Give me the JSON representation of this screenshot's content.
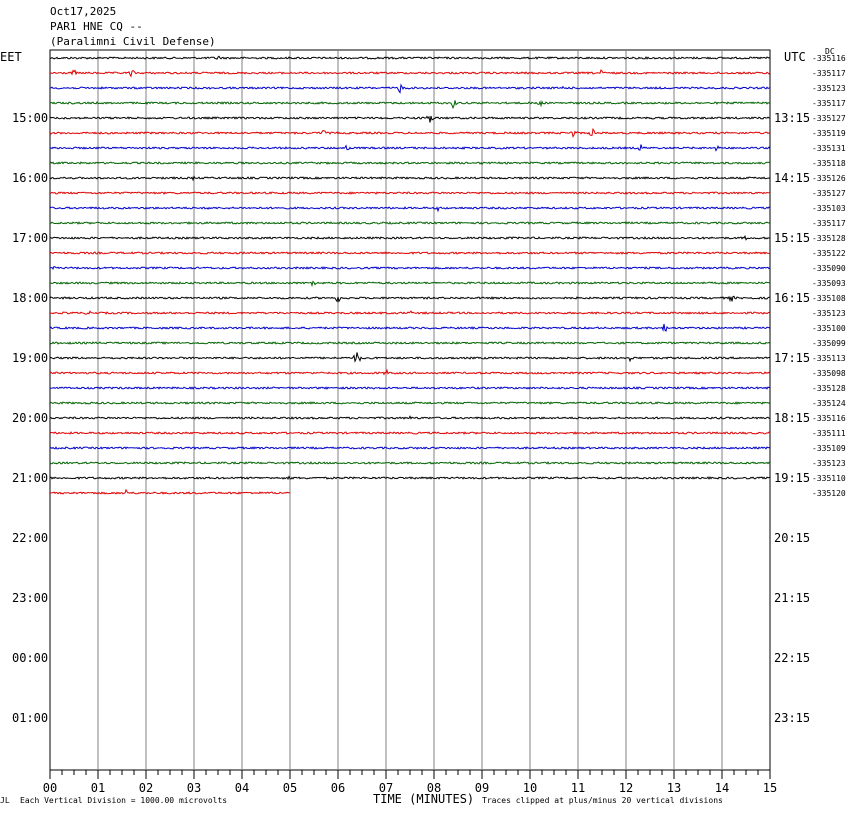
{
  "header": {
    "date": "Oct17,2025",
    "station": "PAR1 HNE CQ --",
    "location": "(Paralimni Civil Defense)"
  },
  "labels": {
    "left_tz": "EET",
    "right_tz": "UTC",
    "dc": "DC",
    "corner": "JL",
    "footer_left": "Each Vertical Division = 1000.00 microvolts",
    "footer_right": "Traces clipped at plus/minus 20 vertical divisions"
  },
  "colors": {
    "cycle": [
      "#000000",
      "#e00000",
      "#0000c8",
      "#006400"
    ],
    "grid": "#808080"
  },
  "chart_data": {
    "type": "line",
    "xlabel": "TIME (MINUTES)",
    "xlim": [
      0,
      15
    ],
    "x_ticks": [
      "00",
      "01",
      "02",
      "03",
      "04",
      "05",
      "06",
      "07",
      "08",
      "09",
      "10",
      "11",
      "12",
      "13",
      "14",
      "15"
    ],
    "left_hour_labels": [
      "15:00",
      "16:00",
      "17:00",
      "18:00",
      "19:00",
      "20:00",
      "21:00",
      "22:00",
      "23:00",
      "00:00",
      "01:00"
    ],
    "right_hour_labels": [
      "13:15",
      "14:15",
      "15:15",
      "16:15",
      "17:15",
      "18:15",
      "19:15",
      "20:15",
      "21:15",
      "22:15",
      "23:15"
    ],
    "rows_per_hour": 4,
    "total_rows": 48,
    "dc_offsets": [
      "-335116",
      "-335117",
      "-335123",
      "-335117",
      "-335127",
      "-335119",
      "-335131",
      "-335118",
      "-335126",
      "-335127",
      "-335103",
      "-335117",
      "-335128",
      "-335122",
      "-335090",
      "-335093",
      "-335108",
      "-335123",
      "-335100",
      "-335099",
      "-335113",
      "-335098",
      "-335128",
      "-335124",
      "-335116",
      "-335111",
      "-335109",
      "-335123",
      "-335110",
      "-335120"
    ],
    "traces": [
      {
        "events": [
          [
            3.5,
            3
          ]
        ]
      },
      {
        "events": [
          [
            0.5,
            3
          ],
          [
            1.7,
            4
          ],
          [
            11.5,
            3
          ]
        ]
      },
      {
        "events": [
          [
            7.3,
            5
          ],
          [
            10.7,
            2
          ]
        ]
      },
      {
        "events": [
          [
            8.4,
            5
          ],
          [
            10.2,
            4
          ],
          [
            14.3,
            2
          ]
        ]
      },
      {
        "events": [
          [
            7.9,
            7
          ]
        ]
      },
      {
        "events": [
          [
            5.7,
            4
          ],
          [
            10.9,
            5
          ],
          [
            11.3,
            5
          ]
        ]
      },
      {
        "events": [
          [
            6.2,
            4
          ],
          [
            12.3,
            4
          ],
          [
            13.9,
            3
          ]
        ]
      },
      {
        "events": [
          [
            9.0,
            2
          ]
        ]
      },
      {
        "events": [
          [
            3.0,
            2
          ]
        ]
      },
      {
        "events": []
      },
      {
        "events": [
          [
            3.3,
            2
          ],
          [
            8.1,
            3
          ]
        ]
      },
      {
        "events": []
      },
      {
        "events": [
          [
            14.5,
            2
          ]
        ]
      },
      {
        "events": []
      },
      {
        "events": [
          [
            0.1,
            2
          ]
        ]
      },
      {
        "events": [
          [
            5.5,
            5
          ]
        ]
      },
      {
        "events": [
          [
            6.0,
            4
          ],
          [
            14.2,
            4
          ]
        ]
      },
      {
        "events": [
          [
            0.8,
            3
          ],
          [
            7.5,
            2
          ]
        ]
      },
      {
        "events": [
          [
            12.8,
            5
          ]
        ]
      },
      {
        "events": []
      },
      {
        "events": [
          [
            6.4,
            8
          ],
          [
            12.1,
            3
          ]
        ]
      },
      {
        "events": [
          [
            7.0,
            3
          ]
        ]
      },
      {
        "events": []
      },
      {
        "events": []
      },
      {
        "events": [
          [
            7.5,
            2
          ]
        ]
      },
      {
        "events": []
      },
      {
        "events": []
      },
      {
        "events": []
      },
      {
        "events": [
          [
            5.0,
            2
          ]
        ]
      },
      {
        "events": [
          [
            1.6,
            4
          ]
        ],
        "end_minute": 5.0
      }
    ]
  }
}
